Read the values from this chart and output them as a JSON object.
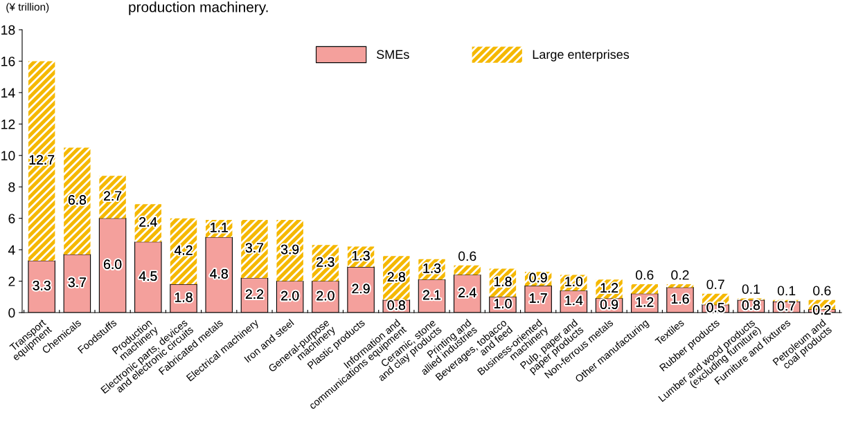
{
  "chart_data": {
    "type": "bar",
    "title": "production machinery.",
    "ylabel": "(¥ trillion)",
    "categories": [
      "Transport\nequipment",
      "Chemicals",
      "Foodstuffs",
      "Production\nmachinery",
      "Electronic parts, devices\nand electronic circuits",
      "Fabricated metals",
      "Electrical machinery",
      "Iron and steel",
      "General-purpose\nmachinery",
      "Plastic products",
      "Information and\ncommunications equipment",
      "Ceramic, stone\nand clay products",
      "Printing and\nallied industries",
      "Beverages, tobacco\nand feed",
      "Business-oriented\nmachinery",
      "Pulp, paper and\npaper products",
      "Non-ferrous metals",
      "Other manufacturing",
      "Textiles",
      "Rubber products",
      "Lumber and wood products\n(excluding furniture)",
      "Furniture and fixtures",
      "Petroleum and\ncoal products"
    ],
    "series": [
      {
        "name": "SMEs",
        "color": "#f4a09c",
        "values": [
          3.3,
          3.7,
          6.0,
          4.5,
          1.8,
          4.8,
          2.2,
          2.0,
          2.0,
          2.9,
          0.8,
          2.1,
          2.4,
          1.0,
          1.7,
          1.4,
          0.9,
          1.2,
          1.6,
          0.5,
          0.8,
          0.7,
          0.2
        ],
        "value_labels": [
          "3.3",
          "3.7",
          "6.0",
          "4.5",
          "1.8",
          "4.8",
          "2.2",
          "2.0",
          "2.0",
          "2.9",
          "0.8",
          "2.1",
          "2.4",
          "1.0",
          "1.7",
          "1.4",
          "0.9",
          "1.2",
          "1.6",
          "0.5",
          "0.8",
          "0.7",
          "0.2"
        ]
      },
      {
        "name": "Large enterprises",
        "color": "#f5b800",
        "values": [
          12.7,
          6.8,
          2.7,
          2.4,
          4.2,
          1.1,
          3.7,
          3.9,
          2.3,
          1.3,
          2.8,
          1.3,
          0.6,
          1.8,
          0.9,
          1.0,
          1.2,
          0.6,
          0.2,
          0.7,
          0.1,
          0.1,
          0.6
        ],
        "value_labels": [
          "12.7",
          "6.8",
          "2.7",
          "2.4",
          "4.2",
          "1.1",
          "3.7",
          "3.9",
          "2.3",
          "1.3",
          "2.8",
          "1.3",
          "0.6",
          "1.8",
          "0.9",
          "1.0",
          "1.2",
          "0.6",
          "0.2",
          "0.7",
          "0.1",
          "0.1",
          "0.6"
        ]
      }
    ],
    "stacked": true,
    "ylim": [
      0,
      18
    ],
    "yticks": [
      0,
      2,
      4,
      6,
      8,
      10,
      12,
      14,
      16,
      18
    ],
    "grid": false,
    "legend": "top"
  }
}
